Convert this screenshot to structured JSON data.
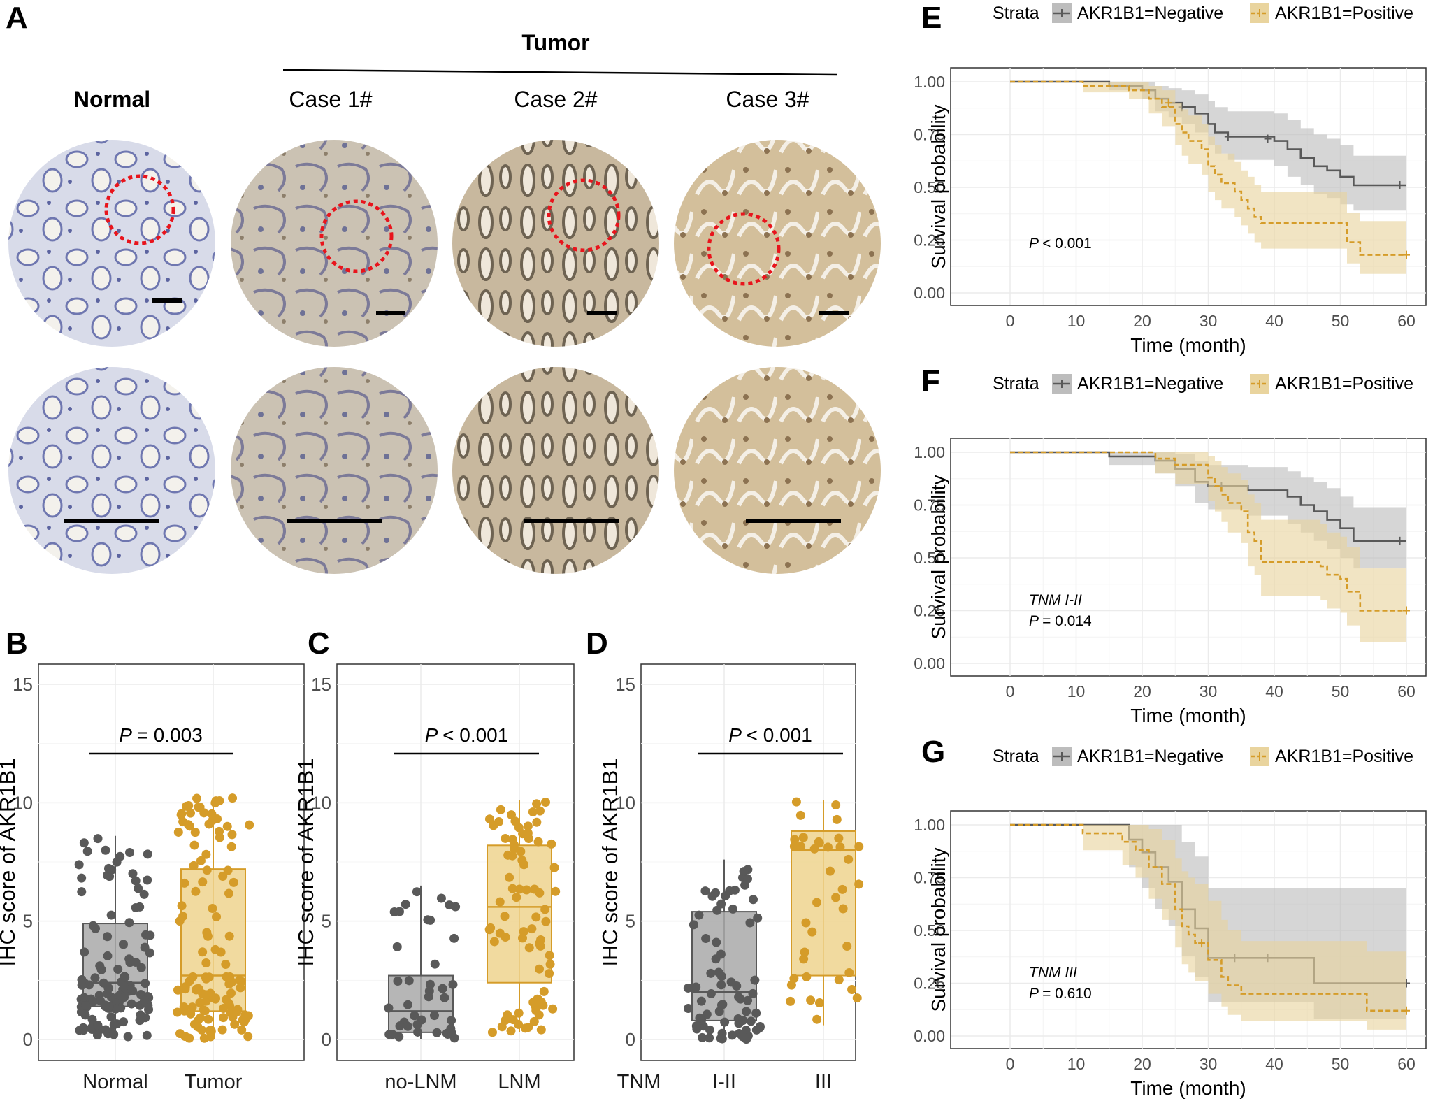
{
  "panel_a": {
    "label": "A",
    "tumor_header": "Tumor",
    "columns": [
      "Normal",
      "Case 1#",
      "Case 2#",
      "Case 3#"
    ],
    "tissue_colors": {
      "normal": "#c7c9dd",
      "case1": "#c9bfae",
      "case2": "#c2b39a",
      "case3": "#c9b48f"
    },
    "circle_color": "#e8141c"
  },
  "colors": {
    "negative": "#595959",
    "positive": "#d59c29",
    "negative_fill": "#bdbdbd",
    "positive_fill": "#e9d49e",
    "grid": "#ebebeb"
  },
  "chart_data": [
    {
      "id": "B",
      "type": "box",
      "label": "B",
      "categories": [
        "Normal",
        "Tumor"
      ],
      "ylabel": "IHC score of AKR1B1",
      "ylim": [
        0,
        15
      ],
      "yticks": [
        0,
        5,
        10,
        15
      ],
      "p_value": "= 0.003",
      "boxes": [
        {
          "name": "Normal",
          "q1": 1.4,
          "median": 2.4,
          "q3": 4.9,
          "whisker_low": 0,
          "whisker_high": 8.6,
          "n_points": 120
        },
        {
          "name": "Tumor",
          "q1": 1.2,
          "median": 2.7,
          "q3": 7.2,
          "whisker_low": 0,
          "whisker_high": 10.2,
          "n_points": 120
        }
      ]
    },
    {
      "id": "C",
      "type": "box",
      "label": "C",
      "categories": [
        "no-LNM",
        "LNM"
      ],
      "ylabel": "IHC score of AKR1B1",
      "ylim": [
        0,
        15
      ],
      "yticks": [
        0,
        5,
        10,
        15
      ],
      "p_value": "< 0.001",
      "boxes": [
        {
          "name": "no-LNM",
          "q1": 0.3,
          "median": 1.2,
          "q3": 2.7,
          "whisker_low": 0,
          "whisker_high": 6.5,
          "n_points": 40
        },
        {
          "name": "LNM",
          "q1": 2.4,
          "median": 5.6,
          "q3": 8.2,
          "whisker_low": 0.3,
          "whisker_high": 10.1,
          "n_points": 80
        }
      ]
    },
    {
      "id": "D",
      "type": "box",
      "label": "D",
      "categories": [
        "I-II",
        "III"
      ],
      "category_prefix": "TNM",
      "ylabel": "IHC score of AKR1B1",
      "ylim": [
        0,
        15
      ],
      "yticks": [
        0,
        5,
        10,
        15
      ],
      "p_value": "< 0.001",
      "boxes": [
        {
          "name": "I-II",
          "q1": 0.8,
          "median": 2.0,
          "q3": 5.4,
          "whisker_low": 0,
          "whisker_high": 7.6,
          "n_points": 70
        },
        {
          "name": "III",
          "q1": 2.7,
          "median": 8.0,
          "q3": 8.8,
          "whisker_low": 0.6,
          "whisker_high": 10.1,
          "n_points": 38
        }
      ]
    },
    {
      "id": "E",
      "type": "line",
      "label": "E",
      "legend_title": "Strata",
      "xlabel": "Time (month)",
      "ylabel": "Survival probability",
      "xlim": [
        0,
        60
      ],
      "ylim": [
        0,
        1
      ],
      "xticks": [
        0,
        10,
        20,
        30,
        40,
        50,
        60
      ],
      "yticks": [
        "0.00",
        "0.25",
        "0.50",
        "0.75",
        "1.00"
      ],
      "annotation": "",
      "p_value": "< 0.001",
      "series": [
        {
          "name": "AKR1B1=Negative",
          "x": [
            0,
            15,
            20,
            22,
            24,
            26,
            28,
            30,
            31,
            33,
            35,
            40,
            42,
            44,
            46,
            48,
            50,
            52,
            60
          ],
          "y": [
            1.0,
            0.98,
            0.96,
            0.92,
            0.9,
            0.88,
            0.85,
            0.8,
            0.76,
            0.74,
            0.74,
            0.72,
            0.68,
            0.64,
            0.6,
            0.58,
            0.55,
            0.51,
            0.51
          ],
          "lower": [
            1.0,
            0.96,
            0.92,
            0.86,
            0.83,
            0.8,
            0.76,
            0.7,
            0.66,
            0.63,
            0.63,
            0.6,
            0.55,
            0.51,
            0.47,
            0.45,
            0.42,
            0.39,
            0.39
          ],
          "upper": [
            1.0,
            1.0,
            1.0,
            0.98,
            0.97,
            0.96,
            0.94,
            0.91,
            0.88,
            0.86,
            0.86,
            0.85,
            0.82,
            0.78,
            0.75,
            0.73,
            0.7,
            0.65,
            0.65
          ],
          "censored": [
            [
              26,
              0.88
            ],
            [
              33,
              0.74
            ],
            [
              39,
              0.73
            ],
            [
              59,
              0.51
            ]
          ]
        },
        {
          "name": "AKR1B1=Positive",
          "x": [
            0,
            11,
            18,
            21,
            23,
            25,
            26,
            27,
            29,
            30,
            31,
            32,
            34,
            35,
            36,
            37,
            38,
            42,
            51,
            53,
            60
          ],
          "y": [
            1.0,
            0.98,
            0.96,
            0.92,
            0.88,
            0.8,
            0.76,
            0.72,
            0.68,
            0.6,
            0.56,
            0.52,
            0.48,
            0.44,
            0.4,
            0.36,
            0.33,
            0.33,
            0.24,
            0.18,
            0.18
          ],
          "lower": [
            1.0,
            0.95,
            0.92,
            0.85,
            0.79,
            0.7,
            0.65,
            0.61,
            0.56,
            0.48,
            0.44,
            0.4,
            0.36,
            0.32,
            0.28,
            0.24,
            0.21,
            0.21,
            0.14,
            0.09,
            0.09
          ],
          "upper": [
            1.0,
            1.0,
            1.0,
            0.98,
            0.96,
            0.9,
            0.87,
            0.84,
            0.8,
            0.74,
            0.7,
            0.66,
            0.62,
            0.58,
            0.55,
            0.51,
            0.48,
            0.48,
            0.38,
            0.34,
            0.34
          ],
          "censored": [
            [
              24,
              0.9
            ],
            [
              60,
              0.18
            ]
          ]
        }
      ]
    },
    {
      "id": "F",
      "type": "line",
      "label": "F",
      "legend_title": "Strata",
      "xlabel": "Time (month)",
      "ylabel": "Survival probability",
      "xlim": [
        0,
        60
      ],
      "ylim": [
        0,
        1
      ],
      "xticks": [
        0,
        10,
        20,
        30,
        40,
        50,
        60
      ],
      "yticks": [
        "0.00",
        "0.25",
        "0.50",
        "0.75",
        "1.00"
      ],
      "annotation": "TNM I-II",
      "p_value": "= 0.014",
      "series": [
        {
          "name": "AKR1B1=Negative",
          "x": [
            0,
            15,
            22,
            25,
            28,
            30,
            33,
            36,
            42,
            44,
            46,
            48,
            50,
            52,
            60
          ],
          "y": [
            1.0,
            0.98,
            0.96,
            0.92,
            0.86,
            0.84,
            0.84,
            0.82,
            0.79,
            0.75,
            0.72,
            0.68,
            0.64,
            0.58,
            0.58
          ],
          "lower": [
            1.0,
            0.94,
            0.9,
            0.84,
            0.76,
            0.73,
            0.73,
            0.7,
            0.66,
            0.62,
            0.58,
            0.54,
            0.5,
            0.45,
            0.45
          ],
          "upper": [
            1.0,
            1.0,
            1.0,
            0.99,
            0.96,
            0.94,
            0.94,
            0.93,
            0.91,
            0.88,
            0.86,
            0.83,
            0.79,
            0.74,
            0.74
          ],
          "censored": [
            [
              32,
              0.84
            ],
            [
              59,
              0.58
            ]
          ]
        },
        {
          "name": "AKR1B1=Positive",
          "x": [
            0,
            22,
            25,
            30,
            31,
            32,
            33,
            35,
            36,
            37,
            38,
            40,
            47,
            48,
            50,
            51,
            53,
            60
          ],
          "y": [
            1.0,
            0.97,
            0.94,
            0.88,
            0.84,
            0.8,
            0.76,
            0.72,
            0.62,
            0.58,
            0.48,
            0.48,
            0.46,
            0.42,
            0.4,
            0.34,
            0.25,
            0.25
          ],
          "lower": [
            1.0,
            0.9,
            0.85,
            0.77,
            0.72,
            0.67,
            0.62,
            0.57,
            0.46,
            0.42,
            0.32,
            0.32,
            0.3,
            0.26,
            0.24,
            0.18,
            0.1,
            0.1
          ],
          "upper": [
            1.0,
            1.0,
            1.0,
            0.98,
            0.96,
            0.93,
            0.9,
            0.87,
            0.8,
            0.76,
            0.68,
            0.68,
            0.66,
            0.62,
            0.6,
            0.55,
            0.45,
            0.45
          ],
          "censored": [
            [
              60,
              0.25
            ]
          ]
        }
      ]
    },
    {
      "id": "G",
      "type": "line",
      "label": "G",
      "legend_title": "Strata",
      "xlabel": "Time (month)",
      "ylabel": "Survival probability",
      "xlim": [
        0,
        60
      ],
      "ylim": [
        0,
        1
      ],
      "xticks": [
        0,
        10,
        20,
        30,
        40,
        50,
        60
      ],
      "yticks": [
        "0.00",
        "0.25",
        "0.50",
        "0.75",
        "1.00"
      ],
      "annotation": "TNM III",
      "p_value": "= 0.610",
      "series": [
        {
          "name": "AKR1B1=Negative",
          "x": [
            0,
            18,
            20,
            22,
            24,
            26,
            28,
            30,
            46,
            60
          ],
          "y": [
            1.0,
            0.93,
            0.87,
            0.8,
            0.73,
            0.6,
            0.51,
            0.37,
            0.25,
            0.25
          ],
          "lower": [
            1.0,
            0.8,
            0.7,
            0.6,
            0.52,
            0.38,
            0.28,
            0.16,
            0.08,
            0.08
          ],
          "upper": [
            1.0,
            1.0,
            1.0,
            1.0,
            1.0,
            0.92,
            0.85,
            0.7,
            0.7,
            0.7
          ],
          "censored": [
            [
              34,
              0.37
            ],
            [
              39,
              0.37
            ],
            [
              60,
              0.25
            ]
          ]
        },
        {
          "name": "AKR1B1=Positive",
          "x": [
            0,
            11,
            17,
            19,
            21,
            23,
            25,
            26,
            27,
            28,
            30,
            32,
            33,
            35,
            46,
            54,
            60
          ],
          "y": [
            1.0,
            0.96,
            0.92,
            0.88,
            0.8,
            0.72,
            0.6,
            0.52,
            0.48,
            0.44,
            0.36,
            0.28,
            0.24,
            0.2,
            0.2,
            0.12,
            0.12
          ],
          "lower": [
            1.0,
            0.88,
            0.81,
            0.75,
            0.65,
            0.55,
            0.42,
            0.34,
            0.3,
            0.26,
            0.2,
            0.14,
            0.1,
            0.07,
            0.07,
            0.03,
            0.03
          ],
          "upper": [
            1.0,
            1.0,
            1.0,
            1.0,
            0.98,
            0.93,
            0.84,
            0.78,
            0.75,
            0.72,
            0.64,
            0.55,
            0.5,
            0.45,
            0.45,
            0.4,
            0.4
          ],
          "censored": [
            [
              29,
              0.44
            ],
            [
              60,
              0.12
            ]
          ]
        }
      ]
    }
  ]
}
